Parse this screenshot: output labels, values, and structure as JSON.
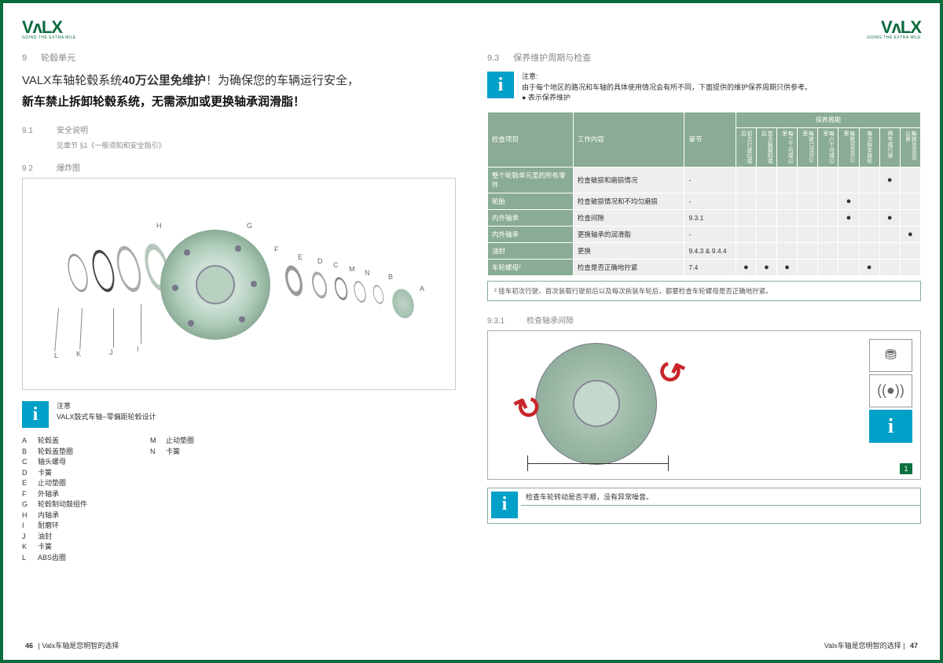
{
  "brand": {
    "name": "VᴧLX",
    "tagline": "GOING THE EXTRA MILE"
  },
  "left": {
    "section": {
      "num": "9",
      "title": "轮毂单元"
    },
    "headline1_a": "VALX车轴轮毂系统",
    "headline1_b": "40万公里免维护",
    "headline1_c": "！为确保您的车辆运行安全，",
    "headline2": "新车禁止拆卸轮毂系统，无需添加或更换轴承润滑脂！",
    "s91": {
      "num": "9.1",
      "title": "安全说明",
      "ref": "见章节 §1《一般须知和安全指引》"
    },
    "s92": {
      "num": "9 2",
      "title": "爆炸图"
    },
    "labels": [
      "L",
      "K",
      "J",
      "I",
      "H",
      "G",
      "F",
      "E",
      "D",
      "C",
      "M",
      "N",
      "B",
      "A"
    ],
    "note": {
      "t1": "注意",
      "t2": "VALX鼓式车轴−零偏距轮毂设计"
    },
    "parts_left": [
      {
        "k": "A",
        "v": "轮毂盖"
      },
      {
        "k": "B",
        "v": "轮毂盖垫圈"
      },
      {
        "k": "C",
        "v": "轴头螺母"
      },
      {
        "k": "D",
        "v": "卡簧"
      },
      {
        "k": "E",
        "v": "止动垫圈"
      },
      {
        "k": "F",
        "v": "外轴承"
      },
      {
        "k": "G",
        "v": "轮毂制动鼓组件"
      },
      {
        "k": "H",
        "v": "内轴承"
      },
      {
        "k": "I",
        "v": "耐磨环"
      },
      {
        "k": "J",
        "v": "油封"
      },
      {
        "k": "K",
        "v": "卡簧"
      },
      {
        "k": "L",
        "v": "ABS齿圈"
      }
    ],
    "parts_right": [
      {
        "k": "M",
        "v": "止动垫圈"
      },
      {
        "k": "N",
        "v": "卡簧"
      }
    ],
    "footer": {
      "page": "46",
      "text": "Valx车轴是您明智的选择"
    }
  },
  "right": {
    "s93": {
      "num": "9.3",
      "title": "保养维护周期与检查"
    },
    "note": {
      "t1": "注意:",
      "t2": "由于每个地区的路况和车轴的具体使用情况会有所不同，下面提供的维护保养周期只供参考。",
      "t3": "● 表示保养维护"
    },
    "table": {
      "h1": "检查项目",
      "h2": "工作内容",
      "h3": "章节",
      "h_period": "保养周期",
      "periods": [
        "初次行驶后或后",
        "首次装载前或后",
        "每三个月或公里",
        "每驶12000公里",
        "每六个月或公里",
        "每驶50000公里",
        "每次拆车装轮",
        "两年或行驶",
        "每驶300000公里"
      ],
      "rows": [
        {
          "c1": "整个轮毂单元里的所有零件",
          "c2": "检查破损和磨损情况",
          "c3": "-",
          "dots": [
            "",
            "",
            "",
            "",
            "",
            "",
            "",
            "●",
            ""
          ]
        },
        {
          "c1": "轮胎",
          "c2": "检查破损情况和不均匀磨损",
          "c3": "-",
          "dots": [
            "",
            "",
            "",
            "",
            "",
            "●",
            "",
            "",
            ""
          ]
        },
        {
          "c1": "内外轴承",
          "c2": "检查间隙",
          "c3": "9.3.1",
          "dots": [
            "",
            "",
            "",
            "",
            "",
            "●",
            "",
            "●",
            ""
          ]
        },
        {
          "c1": "内外轴承",
          "c2": "更换轴承的润滑脂",
          "c3": "-",
          "dots": [
            "",
            "",
            "",
            "",
            "",
            "",
            "",
            "",
            "●"
          ]
        },
        {
          "c1": "油封",
          "c2": "更换",
          "c3": "9.4.3 & 9.4.4",
          "dots": [
            "",
            "",
            "",
            "",
            "",
            "",
            "",
            "",
            ""
          ]
        },
        {
          "c1": "车轮螺母²",
          "c2": "检查是否正确地拧紧",
          "c3": "7.4",
          "dots": [
            "●",
            "●",
            "●",
            "",
            "",
            "",
            "●",
            "",
            ""
          ]
        }
      ]
    },
    "footnote": "² 挂车初次行驶、首次装载行驶前后以及每次拆装车轮后，都要检查车轮螺母是否正确地拧紧。",
    "s931": {
      "num": "9.3.1",
      "title": "检查轴承间隙"
    },
    "step_num": "1",
    "check_text": "检查车轮转动是否平顺，没有异常噪音。",
    "footer": {
      "text": "Valx车轴是您明智的选择",
      "page": "47"
    }
  }
}
